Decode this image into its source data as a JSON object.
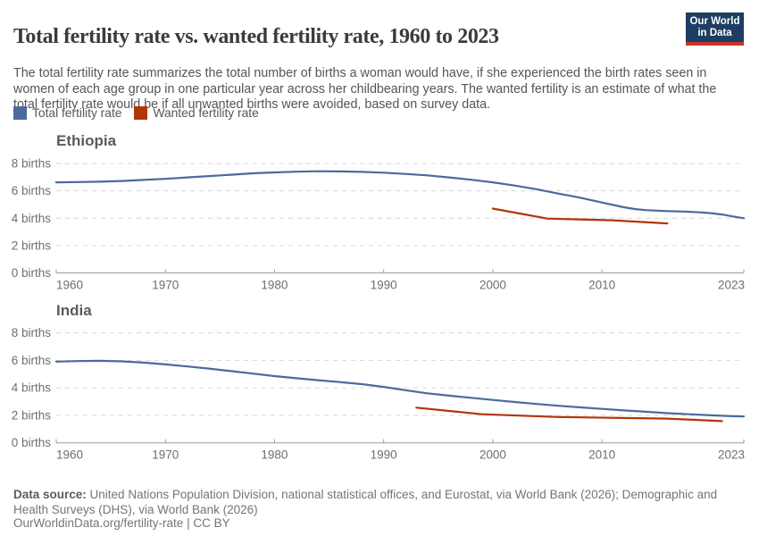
{
  "header": {
    "title": "Total fertility rate vs. wanted fertility rate, 1960 to 2023",
    "subtitle": "The total fertility rate summarizes the total number of births a woman would have, if she experienced the birth rates seen in women of each age group in one particular year across her childbearing years. The wanted fertility is an estimate of what the total fertility rate would be if all unwanted births were avoided, based on survey data.",
    "logo": {
      "line1": "Our World",
      "line2": "in Data",
      "bg_color": "#1d3d63",
      "bar_color": "#c5352b"
    }
  },
  "legend": [
    {
      "label": "Total fertility rate",
      "color": "#4C6A9C"
    },
    {
      "label": "Wanted fertility rate",
      "color": "#B13507"
    }
  ],
  "footer": {
    "source_label": "Data source:",
    "source_text": "United Nations Population Division, national statistical offices, and Eurostat, via World Bank (2026); Demographic and Health Surveys (DHS), via World Bank (2026)",
    "url_text": "OurWorldinData.org/fertility-rate | CC BY"
  },
  "chart_data": [
    {
      "type": "line",
      "title": "Ethiopia",
      "xlabel": "",
      "ylabel": "",
      "xlim": [
        1960,
        2023
      ],
      "ylim": [
        0,
        8
      ],
      "x_ticks": [
        1960,
        1970,
        1980,
        1990,
        2000,
        2010,
        2023
      ],
      "y_ticks": [
        0,
        2,
        4,
        6,
        8
      ],
      "y_tick_suffix": " births",
      "grid": "dashed",
      "legend_position": "top",
      "series": [
        {
          "name": "Total fertility rate",
          "color": "#4C6A9C",
          "points": [
            [
              1960,
              6.62
            ],
            [
              1962,
              6.64
            ],
            [
              1964,
              6.67
            ],
            [
              1966,
              6.72
            ],
            [
              1968,
              6.8
            ],
            [
              1970,
              6.88
            ],
            [
              1972,
              6.98
            ],
            [
              1974,
              7.08
            ],
            [
              1976,
              7.18
            ],
            [
              1978,
              7.28
            ],
            [
              1980,
              7.35
            ],
            [
              1982,
              7.4
            ],
            [
              1984,
              7.43
            ],
            [
              1986,
              7.42
            ],
            [
              1988,
              7.39
            ],
            [
              1990,
              7.33
            ],
            [
              1992,
              7.24
            ],
            [
              1994,
              7.13
            ],
            [
              1996,
              6.98
            ],
            [
              1998,
              6.81
            ],
            [
              2000,
              6.62
            ],
            [
              2002,
              6.39
            ],
            [
              2004,
              6.12
            ],
            [
              2006,
              5.8
            ],
            [
              2008,
              5.5
            ],
            [
              2010,
              5.15
            ],
            [
              2012,
              4.8
            ],
            [
              2013,
              4.67
            ],
            [
              2014,
              4.59
            ],
            [
              2015,
              4.55
            ],
            [
              2016,
              4.52
            ],
            [
              2017,
              4.5
            ],
            [
              2018,
              4.47
            ],
            [
              2019,
              4.43
            ],
            [
              2020,
              4.37
            ],
            [
              2021,
              4.27
            ],
            [
              2022,
              4.13
            ],
            [
              2023,
              4.0
            ]
          ]
        },
        {
          "name": "Wanted fertility rate",
          "color": "#B13507",
          "points": [
            [
              2000,
              4.7
            ],
            [
              2005,
              3.97
            ],
            [
              2011,
              3.85
            ],
            [
              2016,
              3.62
            ]
          ]
        }
      ]
    },
    {
      "type": "line",
      "title": "India",
      "xlabel": "",
      "ylabel": "",
      "xlim": [
        1960,
        2023
      ],
      "ylim": [
        0,
        8
      ],
      "x_ticks": [
        1960,
        1970,
        1980,
        1990,
        2000,
        2010,
        2023
      ],
      "y_ticks": [
        0,
        2,
        4,
        6,
        8
      ],
      "y_tick_suffix": " births",
      "grid": "dashed",
      "legend_position": "top",
      "series": [
        {
          "name": "Total fertility rate",
          "color": "#4C6A9C",
          "points": [
            [
              1960,
              5.91
            ],
            [
              1962,
              5.95
            ],
            [
              1964,
              5.97
            ],
            [
              1966,
              5.93
            ],
            [
              1968,
              5.84
            ],
            [
              1970,
              5.71
            ],
            [
              1972,
              5.56
            ],
            [
              1974,
              5.4
            ],
            [
              1976,
              5.22
            ],
            [
              1978,
              5.04
            ],
            [
              1980,
              4.86
            ],
            [
              1982,
              4.7
            ],
            [
              1984,
              4.56
            ],
            [
              1986,
              4.42
            ],
            [
              1988,
              4.27
            ],
            [
              1990,
              4.07
            ],
            [
              1992,
              3.83
            ],
            [
              1994,
              3.6
            ],
            [
              1996,
              3.43
            ],
            [
              1998,
              3.28
            ],
            [
              2000,
              3.12
            ],
            [
              2002,
              2.97
            ],
            [
              2004,
              2.83
            ],
            [
              2006,
              2.7
            ],
            [
              2008,
              2.58
            ],
            [
              2010,
              2.47
            ],
            [
              2012,
              2.36
            ],
            [
              2014,
              2.26
            ],
            [
              2016,
              2.16
            ],
            [
              2018,
              2.08
            ],
            [
              2020,
              2.0
            ],
            [
              2022,
              1.94
            ],
            [
              2023,
              1.92
            ]
          ]
        },
        {
          "name": "Wanted fertility rate",
          "color": "#B13507",
          "points": [
            [
              1993,
              2.56
            ],
            [
              1999,
              2.08
            ],
            [
              2006,
              1.88
            ],
            [
              2016,
              1.76
            ],
            [
              2021,
              1.58
            ]
          ]
        }
      ]
    }
  ]
}
